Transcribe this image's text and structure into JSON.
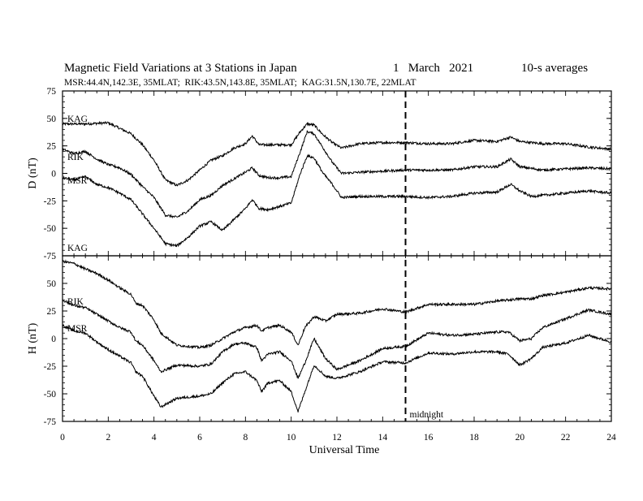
{
  "chart_data": {
    "type": "line",
    "title": "Magnetic Field Variations at 3 Stations in Japan",
    "title_date": "1   March   2021",
    "title_avg": "10-s averages",
    "subtitle": "MSR:44.4N,142.3E, 35MLAT;  RIK:43.5N,143.8E, 35MLAT;  KAG:31.5N,130.7E, 22MLAT",
    "xlabel": "Universal Time",
    "xlim": [
      0,
      24
    ],
    "x_ticks": [
      0,
      2,
      4,
      6,
      8,
      10,
      12,
      14,
      16,
      18,
      20,
      22,
      24
    ],
    "marker": {
      "x": 15,
      "label": "midnight"
    },
    "panels": [
      {
        "ylabel": "D (nT)",
        "ylim": [
          -75,
          75
        ],
        "y_ticks": [
          75,
          50,
          25,
          0,
          -25,
          -50,
          -75
        ],
        "series": [
          {
            "name": "KAG",
            "points": [
              [
                0,
                45
              ],
              [
                1,
                45
              ],
              [
                2,
                46
              ],
              [
                2.5,
                41
              ],
              [
                3,
                36
              ],
              [
                3.5,
                26
              ],
              [
                4,
                12
              ],
              [
                4.5,
                -6
              ],
              [
                5,
                -11
              ],
              [
                5.5,
                -6
              ],
              [
                6,
                3
              ],
              [
                6.5,
                12
              ],
              [
                7,
                16
              ],
              [
                7.5,
                23
              ],
              [
                8,
                27
              ],
              [
                8.3,
                34
              ],
              [
                8.6,
                26
              ],
              [
                9,
                26
              ],
              [
                9.5,
                26
              ],
              [
                10,
                26
              ],
              [
                10.4,
                38
              ],
              [
                10.7,
                45
              ],
              [
                11,
                44
              ],
              [
                11.4,
                35
              ],
              [
                11.8,
                28
              ],
              [
                12.2,
                23
              ],
              [
                13,
                27
              ],
              [
                14,
                28
              ],
              [
                15,
                28
              ],
              [
                16,
                27
              ],
              [
                17,
                27
              ],
              [
                18,
                30
              ],
              [
                19,
                29
              ],
              [
                19.6,
                33
              ],
              [
                20,
                29
              ],
              [
                21,
                27
              ],
              [
                22,
                27
              ],
              [
                23,
                24
              ],
              [
                24,
                22
              ]
            ]
          },
          {
            "name": "RIK",
            "points": [
              [
                0,
                22
              ],
              [
                0.5,
                18
              ],
              [
                1,
                20
              ],
              [
                1.5,
                13
              ],
              [
                2,
                8
              ],
              [
                2.5,
                5
              ],
              [
                3,
                -1
              ],
              [
                3.5,
                -12
              ],
              [
                4,
                -22
              ],
              [
                4.5,
                -38
              ],
              [
                5,
                -40
              ],
              [
                5.5,
                -34
              ],
              [
                6,
                -24
              ],
              [
                6.5,
                -20
              ],
              [
                7,
                -11
              ],
              [
                7.5,
                -5
              ],
              [
                8,
                1
              ],
              [
                8.3,
                5
              ],
              [
                8.6,
                -2
              ],
              [
                9,
                -4
              ],
              [
                9.5,
                -4
              ],
              [
                10,
                -3
              ],
              [
                10.4,
                20
              ],
              [
                10.7,
                38
              ],
              [
                11,
                36
              ],
              [
                11.4,
                23
              ],
              [
                11.8,
                10
              ],
              [
                12.2,
                0
              ],
              [
                13,
                1
              ],
              [
                14,
                2
              ],
              [
                15,
                3
              ],
              [
                16,
                3
              ],
              [
                17,
                3
              ],
              [
                18,
                6
              ],
              [
                19,
                6
              ],
              [
                19.6,
                13
              ],
              [
                20,
                6
              ],
              [
                21,
                3
              ],
              [
                22,
                4
              ],
              [
                23,
                5
              ],
              [
                24,
                4
              ]
            ]
          },
          {
            "name": "MSR",
            "points": [
              [
                0,
                -4
              ],
              [
                0.5,
                -6
              ],
              [
                1,
                -3
              ],
              [
                1.5,
                -10
              ],
              [
                2,
                -13
              ],
              [
                2.5,
                -18
              ],
              [
                3,
                -24
              ],
              [
                3.5,
                -37
              ],
              [
                4,
                -50
              ],
              [
                4.5,
                -64
              ],
              [
                5,
                -66
              ],
              [
                5.5,
                -58
              ],
              [
                6,
                -48
              ],
              [
                6.5,
                -44
              ],
              [
                7,
                -52
              ],
              [
                7.5,
                -42
              ],
              [
                8,
                -32
              ],
              [
                8.3,
                -24
              ],
              [
                8.6,
                -32
              ],
              [
                9,
                -33
              ],
              [
                9.5,
                -30
              ],
              [
                10,
                -27
              ],
              [
                10.4,
                0
              ],
              [
                10.7,
                16
              ],
              [
                11,
                14
              ],
              [
                11.4,
                0
              ],
              [
                11.8,
                -10
              ],
              [
                12.2,
                -22
              ],
              [
                13,
                -21
              ],
              [
                14,
                -21
              ],
              [
                15,
                -21
              ],
              [
                16,
                -22
              ],
              [
                17,
                -21
              ],
              [
                18,
                -18
              ],
              [
                19,
                -17
              ],
              [
                19.6,
                -10
              ],
              [
                20,
                -16
              ],
              [
                20.5,
                -21
              ],
              [
                21,
                -20
              ],
              [
                22,
                -18
              ],
              [
                23,
                -16
              ],
              [
                24,
                -18
              ]
            ]
          }
        ]
      },
      {
        "ylabel": "H (nT)",
        "ylim": [
          -75,
          75
        ],
        "y_ticks": [
          75,
          50,
          25,
          0,
          -25,
          -50,
          -75
        ],
        "series": [
          {
            "name": "KAG",
            "points": [
              [
                0,
                70
              ],
              [
                0.5,
                68
              ],
              [
                1,
                63
              ],
              [
                1.5,
                59
              ],
              [
                2,
                53
              ],
              [
                2.5,
                46
              ],
              [
                3,
                40
              ],
              [
                3.2,
                32
              ],
              [
                3.5,
                30
              ],
              [
                4,
                17
              ],
              [
                4.3,
                5
              ],
              [
                5,
                -6
              ],
              [
                6,
                -8
              ],
              [
                6.5,
                -6
              ],
              [
                7,
                0
              ],
              [
                7.5,
                6
              ],
              [
                8,
                10
              ],
              [
                8.5,
                12
              ],
              [
                8.7,
                7
              ],
              [
                9,
                10
              ],
              [
                9.5,
                12
              ],
              [
                10,
                6
              ],
              [
                10.3,
                -6
              ],
              [
                10.6,
                10
              ],
              [
                11,
                20
              ],
              [
                11.5,
                16
              ],
              [
                12,
                22
              ],
              [
                13,
                23
              ],
              [
                14,
                27
              ],
              [
                15,
                24
              ],
              [
                16,
                31
              ],
              [
                17,
                31
              ],
              [
                18,
                31
              ],
              [
                19,
                34
              ],
              [
                20,
                36
              ],
              [
                20.5,
                36
              ],
              [
                21,
                39
              ],
              [
                22,
                42
              ],
              [
                23,
                46
              ],
              [
                24,
                45
              ]
            ]
          },
          {
            "name": "RIK",
            "points": [
              [
                0,
                35
              ],
              [
                0.5,
                30
              ],
              [
                1,
                28
              ],
              [
                1.5,
                22
              ],
              [
                2,
                16
              ],
              [
                2.5,
                10
              ],
              [
                3,
                6
              ],
              [
                3.2,
                -2
              ],
              [
                3.5,
                -6
              ],
              [
                4,
                -20
              ],
              [
                4.3,
                -30
              ],
              [
                5,
                -24
              ],
              [
                6,
                -25
              ],
              [
                6.5,
                -23
              ],
              [
                7,
                -12
              ],
              [
                7.5,
                -5
              ],
              [
                8,
                -4
              ],
              [
                8.5,
                -8
              ],
              [
                8.7,
                -20
              ],
              [
                9,
                -14
              ],
              [
                9.5,
                -12
              ],
              [
                10,
                -20
              ],
              [
                10.3,
                -36
              ],
              [
                10.6,
                -22
              ],
              [
                11,
                0
              ],
              [
                11.5,
                -18
              ],
              [
                12,
                -28
              ],
              [
                13,
                -20
              ],
              [
                14,
                -9
              ],
              [
                15,
                -7
              ],
              [
                16,
                5
              ],
              [
                17,
                3
              ],
              [
                18,
                4
              ],
              [
                19,
                6
              ],
              [
                19.5,
                6
              ],
              [
                20,
                -2
              ],
              [
                20.5,
                0
              ],
              [
                21,
                10
              ],
              [
                22,
                18
              ],
              [
                23,
                26
              ],
              [
                24,
                22
              ]
            ]
          },
          {
            "name": "MSR",
            "points": [
              [
                0,
                12
              ],
              [
                0.5,
                7
              ],
              [
                1,
                5
              ],
              [
                1.5,
                -3
              ],
              [
                2,
                -10
              ],
              [
                2.5,
                -16
              ],
              [
                3,
                -22
              ],
              [
                3.2,
                -30
              ],
              [
                3.5,
                -34
              ],
              [
                4,
                -52
              ],
              [
                4.3,
                -62
              ],
              [
                5,
                -54
              ],
              [
                6,
                -52
              ],
              [
                6.5,
                -50
              ],
              [
                7,
                -40
              ],
              [
                7.5,
                -32
              ],
              [
                8,
                -30
              ],
              [
                8.5,
                -38
              ],
              [
                8.7,
                -48
              ],
              [
                9,
                -40
              ],
              [
                9.5,
                -38
              ],
              [
                10,
                -48
              ],
              [
                10.3,
                -66
              ],
              [
                10.6,
                -48
              ],
              [
                11,
                -24
              ],
              [
                11.5,
                -34
              ],
              [
                12,
                -36
              ],
              [
                13,
                -30
              ],
              [
                14,
                -21
              ],
              [
                15,
                -22
              ],
              [
                16,
                -13
              ],
              [
                17,
                -14
              ],
              [
                18,
                -12
              ],
              [
                19,
                -12
              ],
              [
                19.5,
                -14
              ],
              [
                20,
                -24
              ],
              [
                20.5,
                -18
              ],
              [
                21,
                -8
              ],
              [
                22,
                -4
              ],
              [
                23,
                3
              ],
              [
                24,
                -3
              ]
            ]
          }
        ]
      }
    ],
    "panel_side_labels": {
      "top": [
        "KAG",
        "RIK",
        "MSR"
      ],
      "bottom_of_top": "KAG",
      "bottom": [
        "RIK",
        "MSR"
      ]
    },
    "grid": false,
    "colors": {
      "lines": "#000000",
      "background": "#ffffff"
    }
  }
}
